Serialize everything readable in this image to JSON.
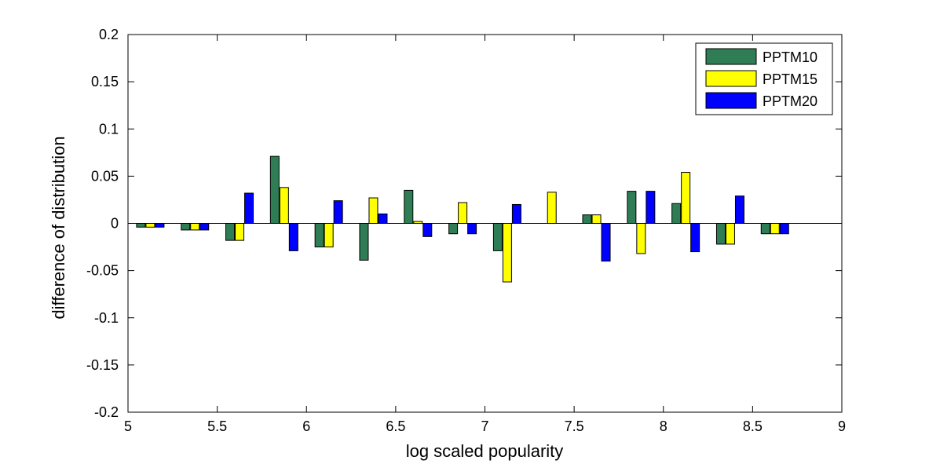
{
  "chart_data": {
    "type": "bar",
    "xlabel": "log scaled popularity",
    "ylabel": "difference of distribution",
    "xlim": [
      5,
      9
    ],
    "ylim": [
      -0.2,
      0.2
    ],
    "xticks": [
      5,
      5.5,
      6,
      6.5,
      7,
      7.5,
      8,
      8.5,
      9
    ],
    "yticks": [
      -0.2,
      -0.15,
      -0.1,
      -0.05,
      0,
      0.05,
      0.1,
      0.15,
      0.2
    ],
    "xtick_labels": [
      "5",
      "5.5",
      "6",
      "6.5",
      "7",
      "7.5",
      "8",
      "8.5",
      "9"
    ],
    "ytick_labels": [
      "-0.2",
      "-0.15",
      "-0.1",
      "-0.05",
      "0",
      "0.05",
      "0.1",
      "0.15",
      "0.2"
    ],
    "categories": [
      5.125,
      5.375,
      5.625,
      5.875,
      6.125,
      6.375,
      6.625,
      6.875,
      7.125,
      7.375,
      7.625,
      7.875,
      8.125,
      8.375,
      8.625
    ],
    "series": [
      {
        "name": "PPTM10",
        "color": "#2e7d55",
        "values": [
          -0.004,
          -0.007,
          -0.018,
          0.071,
          -0.025,
          -0.039,
          0.035,
          -0.011,
          -0.029,
          0.0,
          0.009,
          0.034,
          0.021,
          -0.022,
          -0.011
        ]
      },
      {
        "name": "PPTM15",
        "color": "#ffff00",
        "values": [
          -0.004,
          -0.007,
          -0.018,
          0.038,
          -0.025,
          0.027,
          0.002,
          0.022,
          -0.062,
          0.033,
          0.009,
          -0.032,
          0.054,
          -0.022,
          -0.011
        ]
      },
      {
        "name": "PPTM20",
        "color": "#0000ff",
        "values": [
          -0.004,
          -0.007,
          0.032,
          -0.029,
          0.024,
          0.01,
          -0.014,
          -0.011,
          0.02,
          0.0,
          -0.04,
          0.034,
          -0.03,
          0.029,
          -0.011
        ]
      }
    ],
    "legend_position": "top-right",
    "grid": false
  }
}
